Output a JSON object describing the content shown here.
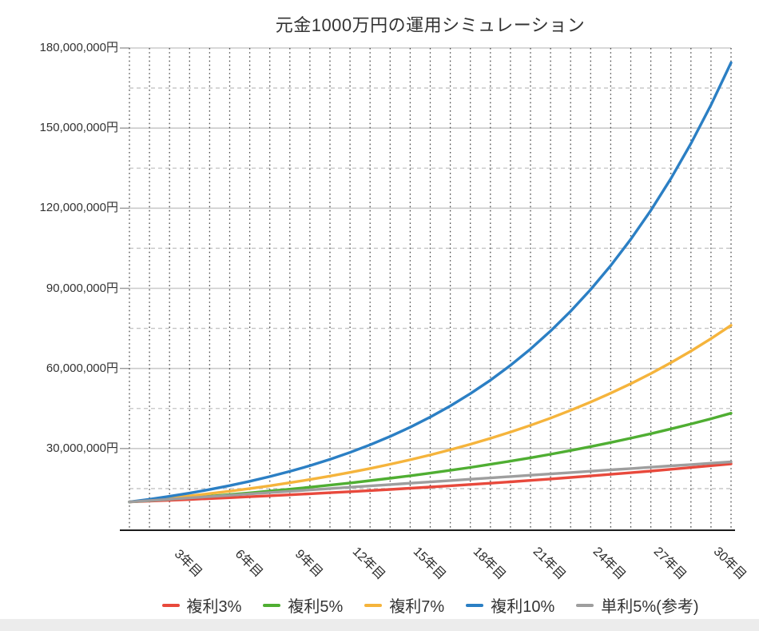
{
  "title": "元金1000万円の運用シミュレーション",
  "chart_data": {
    "type": "line",
    "title": "元金1000万円の運用シミュレーション",
    "x_unit": "year",
    "x": [
      0,
      1,
      2,
      3,
      4,
      5,
      6,
      7,
      8,
      9,
      10,
      11,
      12,
      13,
      14,
      15,
      16,
      17,
      18,
      19,
      20,
      21,
      22,
      23,
      24,
      25,
      26,
      27,
      28,
      29,
      30
    ],
    "x_tick_years": [
      3,
      6,
      9,
      12,
      15,
      18,
      21,
      24,
      27,
      30
    ],
    "x_tick_labels": [
      "3年目",
      "6年目",
      "9年目",
      "12年目",
      "15年目",
      "18年目",
      "21年目",
      "24年目",
      "27年目",
      "30年目"
    ],
    "y_tick_values": [
      30000000,
      60000000,
      90000000,
      120000000,
      150000000,
      180000000
    ],
    "y_tick_labels": [
      "30,000,000円",
      "60,000,000円",
      "90,000,000円",
      "120,000,000円",
      "150,000,000円",
      "180,000,000円"
    ],
    "ylim": [
      0,
      180000000
    ],
    "y_minor_step": 15000000,
    "grid": "horizontal major solid, horizontal minor dashed, vertical dotted every year",
    "legend_position": "bottom",
    "series": [
      {
        "name": "複利3%",
        "color": "#e8493c",
        "values": [
          10000000,
          10300000,
          10609000,
          10927270,
          11255088,
          11592741,
          11940523,
          12298739,
          12667701,
          13047732,
          13439164,
          13842339,
          14257609,
          14685337,
          15125897,
          15579674,
          16047064,
          16528476,
          17024331,
          17535061,
          18061112,
          18602946,
          19161034,
          19735865,
          20327941,
          20937779,
          21565913,
          22212890,
          22879277,
          23565655,
          24272625
        ]
      },
      {
        "name": "複利5%",
        "color": "#4fae32",
        "values": [
          10000000,
          10500000,
          11025000,
          11576250,
          12155063,
          12762816,
          13400956,
          14071004,
          14774554,
          15513282,
          16288946,
          17103394,
          17958563,
          18856491,
          19799316,
          20789282,
          21828746,
          22920183,
          24066192,
          25269502,
          26532977,
          27859626,
          29252608,
          30715238,
          32251000,
          33863549,
          35556727,
          37334563,
          39201291,
          41161356,
          43219424
        ]
      },
      {
        "name": "複利7%",
        "color": "#f5b43c",
        "values": [
          10000000,
          10700000,
          11449000,
          12250430,
          13107960,
          14025517,
          15007304,
          16057815,
          17181862,
          18384592,
          19671514,
          21048520,
          22521916,
          24098450,
          25785342,
          27590315,
          29521637,
          31588152,
          33799323,
          36165275,
          38696845,
          41405624,
          44304017,
          47405299,
          50723670,
          54274326,
          58073529,
          62138676,
          66488383,
          71142570,
          76122550
        ]
      },
      {
        "name": "複利10%",
        "color": "#2b7fc4",
        "values": [
          10000000,
          11000000,
          12100000,
          13310000,
          14641000,
          16105100,
          17715610,
          19487171,
          21435888,
          23579477,
          25937425,
          28531167,
          31384284,
          34522712,
          37974983,
          41772482,
          45949730,
          50544703,
          55599173,
          61159090,
          67274999,
          74002499,
          81402749,
          89543024,
          98497327,
          108347059,
          119181765,
          131099942,
          144209936,
          158630930,
          174494023
        ]
      },
      {
        "name": "単利5%(参考)",
        "color": "#9e9e9e",
        "values": [
          10000000,
          10500000,
          11000000,
          11500000,
          12000000,
          12500000,
          13000000,
          13500000,
          14000000,
          14500000,
          15000000,
          15500000,
          16000000,
          16500000,
          17000000,
          17500000,
          18000000,
          18500000,
          19000000,
          19500000,
          20000000,
          20500000,
          21000000,
          21500000,
          22000000,
          22500000,
          23000000,
          23500000,
          24000000,
          24500000,
          25000000
        ]
      }
    ]
  }
}
